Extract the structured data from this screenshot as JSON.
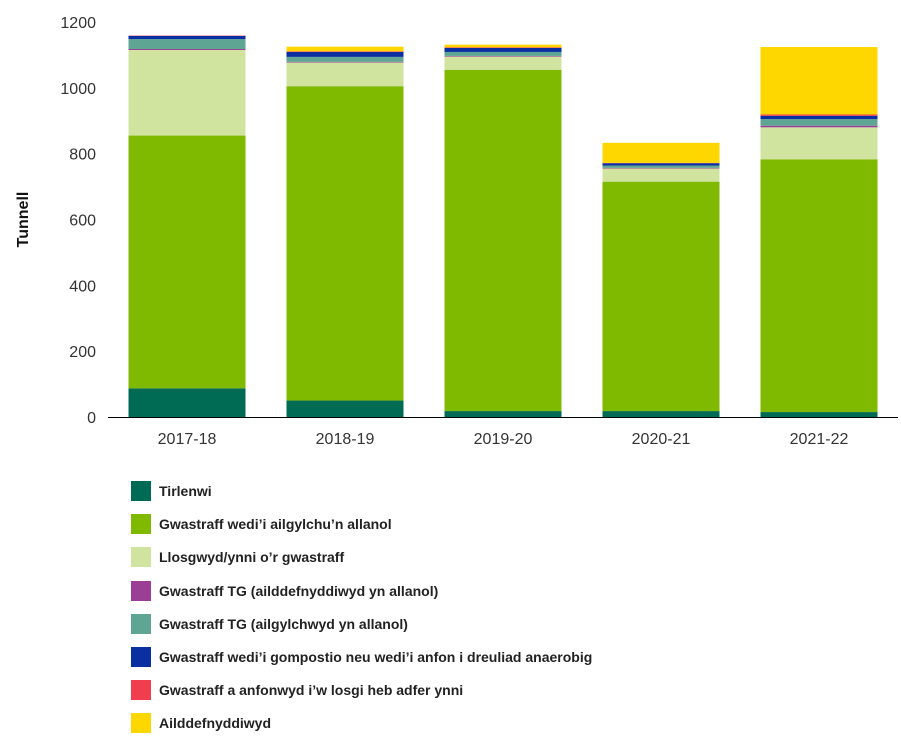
{
  "chart_data": {
    "type": "bar",
    "stacked": true,
    "categories": [
      "2017-18",
      "2018-19",
      "2019-20",
      "2020-21",
      "2021-22"
    ],
    "ylabel": "Tunnell",
    "xlabel": "",
    "ylim": [
      0,
      1200
    ],
    "yticks": [
      0,
      200,
      400,
      600,
      800,
      1000,
      1200
    ],
    "grid": false,
    "legend_position": "bottom",
    "series": [
      {
        "name": "Tirlenwi",
        "color": "#006b54",
        "values": [
          87,
          50,
          18,
          18,
          15
        ]
      },
      {
        "name": "Gwastraff wedi’i ailgylchu’n allanol",
        "color": "#7fba00",
        "values": [
          768,
          955,
          1037,
          697,
          768
        ]
      },
      {
        "name": "Llosgwyd/ynni o’r gwastraff",
        "color": "#d0e4a0",
        "values": [
          260,
          72,
          40,
          40,
          97
        ]
      },
      {
        "name": "Gwastraff TG (ailddefnyddiwyd yn allanol)",
        "color": "#9b3f96",
        "values": [
          3,
          2,
          2,
          2,
          5
        ]
      },
      {
        "name": "Gwastraff TG (ailgylchwyd yn allanol)",
        "color": "#5fa594",
        "values": [
          30,
          15,
          12,
          7,
          20
        ]
      },
      {
        "name": "Gwastraff wedi’i gompostio neu wedi’i anfon i dreuliad anaerobig",
        "color": "#0a2fa0",
        "values": [
          10,
          15,
          12,
          7,
          10
        ]
      },
      {
        "name": "Gwastraff a anfonwyd i’w losgi heb adfer ynni",
        "color": "#f03e4e",
        "values": [
          1,
          2,
          2,
          1,
          4
        ]
      },
      {
        "name": "Ailddefnyddiwyd",
        "color": "#ffd700",
        "values": [
          0,
          14,
          8,
          61,
          205
        ]
      }
    ]
  }
}
